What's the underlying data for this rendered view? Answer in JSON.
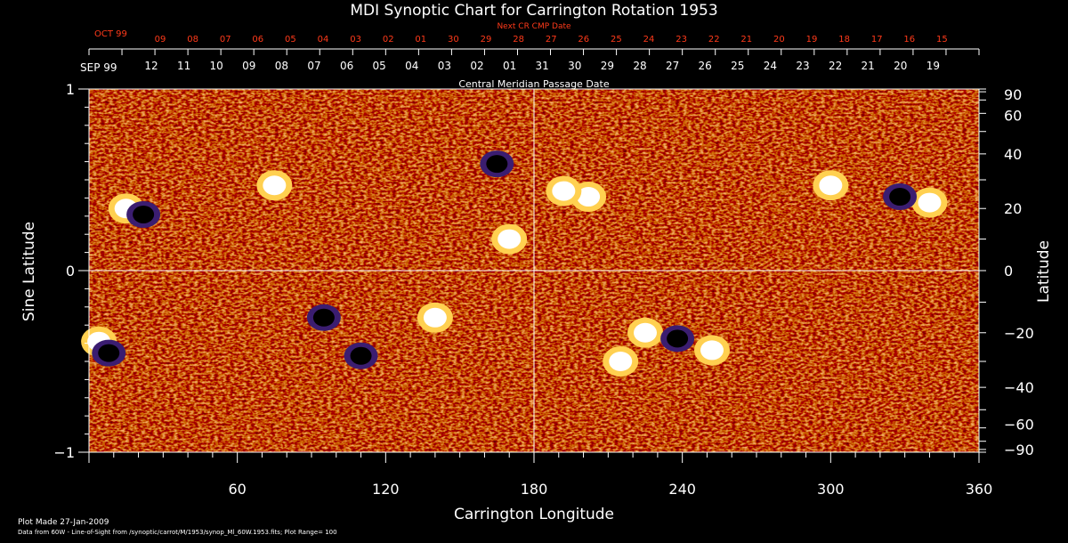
{
  "chart_data": {
    "type": "heatmap",
    "title": "MDI Synoptic Chart for Carrington Rotation 1953",
    "xlabel": "Carrington Longitude",
    "ylabel_left": "Sine Latitude",
    "ylabel_right": "Latitude",
    "xlim": [
      0,
      360
    ],
    "ylim_sine": [
      -1,
      1
    ],
    "x_ticks": [
      "60",
      "120",
      "180",
      "240",
      "300",
      "360"
    ],
    "x_tick_values": [
      60,
      120,
      180,
      240,
      300,
      360
    ],
    "y_left_ticks": [
      "1",
      "0",
      "−1"
    ],
    "y_left_tick_values": [
      1,
      0,
      -1
    ],
    "y_right_ticks": [
      "90",
      "60",
      "40",
      "20",
      "0",
      "−20",
      "−40",
      "−60",
      "−90"
    ],
    "y_right_tick_values": [
      90,
      60,
      40,
      20,
      0,
      -20,
      -40,
      -60,
      -90
    ],
    "top_axis_label": "Central Meridian Passage Date",
    "top_axis_month": "SEP 99",
    "top_axis_dates": [
      "12",
      "11",
      "10",
      "09",
      "08",
      "07",
      "06",
      "05",
      "04",
      "03",
      "02",
      "01",
      "31",
      "30",
      "29",
      "28",
      "27",
      "26",
      "25",
      "24",
      "23",
      "22",
      "21",
      "20",
      "19"
    ],
    "next_cr_label": "Next CR CMP Date",
    "next_cr_month": "OCT 99",
    "next_cr_dates": [
      "09",
      "08",
      "07",
      "06",
      "05",
      "04",
      "03",
      "02",
      "01",
      "30",
      "29",
      "28",
      "27",
      "26",
      "25",
      "24",
      "23",
      "22",
      "21",
      "20",
      "19",
      "18",
      "17",
      "16",
      "15"
    ],
    "grid_lines": {
      "longitude": 180,
      "sine_latitude": 0
    },
    "colormap": [
      "#3b1d70",
      "#000000",
      "#8a1200",
      "#e8400c",
      "#ff6a14",
      "#ffd050",
      "#ffffff"
    ],
    "active_regions": [
      {
        "lon": 15,
        "lat": 20,
        "polarity": "positive"
      },
      {
        "lon": 22,
        "lat": 18,
        "polarity": "negative"
      },
      {
        "lon": 75,
        "lat": 28,
        "polarity": "positive"
      },
      {
        "lon": 170,
        "lat": 10,
        "polarity": "positive"
      },
      {
        "lon": 165,
        "lat": 36,
        "polarity": "negative"
      },
      {
        "lon": 202,
        "lat": 24,
        "polarity": "positive"
      },
      {
        "lon": 192,
        "lat": 26,
        "polarity": "positive"
      },
      {
        "lon": 340,
        "lat": 22,
        "polarity": "positive"
      },
      {
        "lon": 328,
        "lat": 24,
        "polarity": "negative"
      },
      {
        "lon": 300,
        "lat": 28,
        "polarity": "positive"
      },
      {
        "lon": 4,
        "lat": -23,
        "polarity": "positive"
      },
      {
        "lon": 8,
        "lat": -27,
        "polarity": "negative"
      },
      {
        "lon": 140,
        "lat": -15,
        "polarity": "positive"
      },
      {
        "lon": 110,
        "lat": -28,
        "polarity": "negative"
      },
      {
        "lon": 225,
        "lat": -20,
        "polarity": "positive"
      },
      {
        "lon": 238,
        "lat": -22,
        "polarity": "negative"
      },
      {
        "lon": 252,
        "lat": -26,
        "polarity": "positive"
      },
      {
        "lon": 215,
        "lat": -30,
        "polarity": "positive"
      },
      {
        "lon": 95,
        "lat": -15,
        "polarity": "negative"
      }
    ]
  },
  "footer": {
    "plot_made": "Plot Made 27-Jan-2009",
    "data_source": "Data from 60W - Line-of-Sight from /synoptic/carrot/M/1953/synop_Ml_60W.1953.fits; Plot Range=  100"
  }
}
